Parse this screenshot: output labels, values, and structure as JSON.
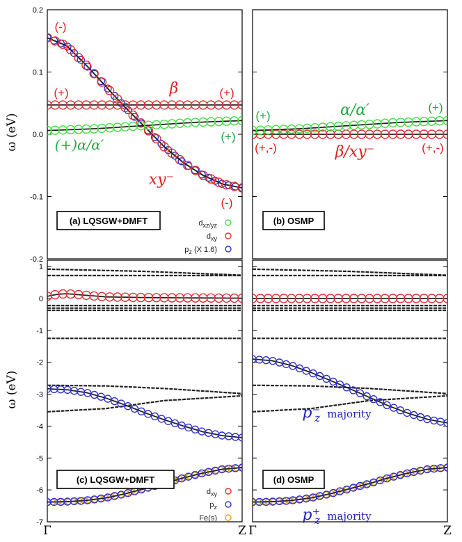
{
  "figure": {
    "xticks": [
      "Γ",
      "Z"
    ],
    "ylabel": "ω (eV)"
  },
  "chart_data": [
    {
      "type": "line",
      "panel_label": "(a) LQSGW+DMFT",
      "ylim": [
        -0.2,
        0.2
      ],
      "yticks": [
        "0.2",
        "0.1",
        "0.0",
        "-0.1",
        "-0.2"
      ],
      "ytick_values": [
        0.2,
        0.1,
        0.0,
        -0.1,
        -0.2
      ],
      "legend": [
        {
          "label": "d",
          "sub": "xz/yz",
          "suffix": "",
          "color": "#44dd44"
        },
        {
          "label": "d",
          "sub": "xy",
          "suffix": "",
          "color": "#e03030"
        },
        {
          "label": "p",
          "sub": "z",
          "suffix": " (X 1.6)",
          "color": "#3030d0"
        }
      ],
      "series": [
        {
          "marker": "#3030d0",
          "line": "#222222",
          "ysize": 7,
          "x": [
            0,
            0.1,
            0.2,
            0.3,
            0.4,
            0.5,
            0.6,
            0.7,
            0.8,
            0.9,
            1.0
          ],
          "y": [
            0.155,
            0.142,
            0.111,
            0.077,
            0.043,
            0.012,
            -0.02,
            -0.046,
            -0.066,
            -0.08,
            -0.086
          ]
        },
        {
          "marker": "#e03030",
          "line": "#222222",
          "ysize": 9,
          "x": [
            0,
            0.1,
            0.2,
            0.3,
            0.4,
            0.5,
            0.6,
            0.7,
            0.8,
            0.9,
            1.0
          ],
          "y": [
            0.155,
            0.142,
            0.111,
            0.077,
            0.043,
            0.012,
            -0.02,
            -0.046,
            -0.066,
            -0.08,
            -0.086
          ]
        },
        {
          "marker": "#e03030",
          "line": "#222222",
          "ysize": 9,
          "x": [
            0,
            1
          ],
          "y": [
            0.047,
            0.047
          ]
        },
        {
          "marker": "#44dd44",
          "line": "#222222",
          "ysize": 9,
          "x": [
            0,
            0.25,
            0.5,
            0.75,
            1.0
          ],
          "y": [
            0.006,
            0.009,
            0.014,
            0.019,
            0.022
          ]
        }
      ],
      "annotations": [
        {
          "text": "(-)",
          "color": "#e02020",
          "italic": false
        },
        {
          "text": "(+)",
          "color": "#e02020",
          "italic": false
        },
        {
          "text": "β",
          "color": "#e02020",
          "italic": true
        },
        {
          "text": "(+)",
          "color": "#e02020",
          "italic": false
        },
        {
          "text": "(+)",
          "color": "#22aa44",
          "italic": false
        },
        {
          "text": "(+)α/α′",
          "color": "#22aa44",
          "italic": true
        },
        {
          "text": "xy⁻",
          "color": "#e02020",
          "italic": true
        },
        {
          "text": "(-)",
          "color": "#e02020",
          "italic": false
        }
      ]
    },
    {
      "type": "line",
      "panel_label": "(b) OSMP",
      "ylim": [
        -0.2,
        0.2
      ],
      "series": [
        {
          "marker": "#e03030",
          "line": "#222222",
          "ysize": 9,
          "x": [
            0,
            1
          ],
          "y": [
            0.0,
            0.0
          ]
        },
        {
          "marker": "#44dd44",
          "line": "#222222",
          "ysize": 9,
          "x": [
            0,
            0.25,
            0.5,
            0.75,
            1.0
          ],
          "y": [
            0.006,
            0.009,
            0.014,
            0.019,
            0.022
          ]
        }
      ],
      "annotations": [
        {
          "text": "(+)",
          "color": "#22aa44",
          "italic": false
        },
        {
          "text": "α/α′",
          "color": "#22aa44",
          "italic": true
        },
        {
          "text": "(+)",
          "color": "#22aa44",
          "italic": false
        },
        {
          "text": "(+,-)",
          "color": "#e02020",
          "italic": false
        },
        {
          "text": "β/xy⁻",
          "color": "#e02020",
          "italic": true
        },
        {
          "text": "(+,-)",
          "color": "#e02020",
          "italic": false
        }
      ]
    },
    {
      "type": "line",
      "panel_label": "(c) LQSGW+DMFT",
      "ylim": [
        -7,
        1.2
      ],
      "yticks": [
        "1",
        "0",
        "-1",
        "-2",
        "-3",
        "-4",
        "-5",
        "-6",
        "-7"
      ],
      "ytick_values": [
        1,
        0,
        -1,
        -2,
        -3,
        -4,
        -5,
        -6,
        -7
      ],
      "legend": [
        {
          "label": "d",
          "sub": "xy",
          "suffix": "",
          "color": "#e03030"
        },
        {
          "label": "p",
          "sub": "z",
          "suffix": "",
          "color": "#3030d0"
        },
        {
          "label": "Fe(s)",
          "sub": "",
          "suffix": "",
          "color": "#e0a020"
        }
      ],
      "series": [
        {
          "marker": "",
          "line": "#222222",
          "ysize": 0,
          "x": [
            0,
            0.5,
            1.0
          ],
          "y": [
            0.92,
            0.85,
            0.73
          ]
        },
        {
          "marker": "",
          "line": "#222222",
          "ysize": 0,
          "x": [
            0,
            1
          ],
          "y": [
            0.72,
            0.72
          ]
        },
        {
          "marker": "",
          "line": "#222222",
          "ysize": 0,
          "x": [
            0,
            1
          ],
          "y": [
            -0.22,
            -0.22
          ]
        },
        {
          "marker": "",
          "line": "#222222",
          "ysize": 0,
          "x": [
            0,
            1
          ],
          "y": [
            -0.3,
            -0.3
          ]
        },
        {
          "marker": "",
          "line": "#222222",
          "ysize": 0,
          "x": [
            0,
            1
          ],
          "y": [
            -0.37,
            -0.37
          ]
        },
        {
          "marker": "",
          "line": "#222222",
          "ysize": 0,
          "x": [
            0,
            1
          ],
          "y": [
            -1.25,
            -1.25
          ]
        },
        {
          "marker": "",
          "line": "#222222",
          "ysize": 0,
          "x": [
            0,
            0.3,
            0.6,
            1.0
          ],
          "y": [
            -2.72,
            -2.74,
            -2.82,
            -2.98
          ]
        },
        {
          "marker": "",
          "line": "#222222",
          "ysize": 0,
          "x": [
            0,
            0.3,
            0.6,
            1.0
          ],
          "y": [
            -3.55,
            -3.45,
            -3.2,
            -3.05
          ]
        },
        {
          "marker": "#e03030",
          "line": "#222222",
          "ysize": 9,
          "x": [
            0,
            0.05,
            0.1,
            0.2,
            0.3,
            0.5,
            0.7,
            1.0
          ],
          "y": [
            0.07,
            0.13,
            0.15,
            0.1,
            0.05,
            0.03,
            0.02,
            0.01
          ]
        },
        {
          "marker": "#3030d0",
          "line": "#222222",
          "ysize": 7,
          "x": [
            0,
            0.1,
            0.2,
            0.3,
            0.4,
            0.5,
            0.6,
            0.7,
            0.8,
            0.9,
            1.0
          ],
          "y": [
            -2.83,
            -2.86,
            -2.95,
            -3.12,
            -3.34,
            -3.58,
            -3.8,
            -4.0,
            -4.18,
            -4.3,
            -4.36
          ]
        },
        {
          "marker": "#e0a020",
          "line": "#222222",
          "ysize": 5,
          "x": [
            0,
            0.1,
            0.2,
            0.3,
            0.4,
            0.5,
            0.6,
            0.7,
            0.8,
            0.9,
            1.0
          ],
          "y": [
            -6.38,
            -6.37,
            -6.33,
            -6.25,
            -6.12,
            -5.96,
            -5.8,
            -5.62,
            -5.47,
            -5.35,
            -5.3
          ]
        },
        {
          "marker": "#3030d0",
          "line": "#222222",
          "ysize": 7,
          "x": [
            0,
            0.1,
            0.2,
            0.3,
            0.4,
            0.5,
            0.6,
            0.7,
            0.8,
            0.9,
            1.0
          ],
          "y": [
            -6.38,
            -6.37,
            -6.33,
            -6.25,
            -6.12,
            -5.96,
            -5.8,
            -5.62,
            -5.47,
            -5.35,
            -5.3
          ]
        }
      ],
      "annotations": []
    },
    {
      "type": "line",
      "panel_label": "(d) OSMP",
      "ylim": [
        -7,
        1.2
      ],
      "series": [
        {
          "marker": "",
          "line": "#222222",
          "ysize": 0,
          "x": [
            0,
            0.5,
            1.0
          ],
          "y": [
            0.92,
            0.85,
            0.73
          ]
        },
        {
          "marker": "",
          "line": "#222222",
          "ysize": 0,
          "x": [
            0,
            1
          ],
          "y": [
            0.72,
            0.72
          ]
        },
        {
          "marker": "",
          "line": "#222222",
          "ysize": 0,
          "x": [
            0,
            1
          ],
          "y": [
            -0.22,
            -0.22
          ]
        },
        {
          "marker": "",
          "line": "#222222",
          "ysize": 0,
          "x": [
            0,
            1
          ],
          "y": [
            -0.3,
            -0.3
          ]
        },
        {
          "marker": "",
          "line": "#222222",
          "ysize": 0,
          "x": [
            0,
            1
          ],
          "y": [
            -0.37,
            -0.37
          ]
        },
        {
          "marker": "",
          "line": "#222222",
          "ysize": 0,
          "x": [
            0,
            1
          ],
          "y": [
            -1.25,
            -1.25
          ]
        },
        {
          "marker": "",
          "line": "#222222",
          "ysize": 0,
          "x": [
            0,
            0.3,
            0.6,
            1.0
          ],
          "y": [
            -2.72,
            -2.74,
            -2.82,
            -2.98
          ]
        },
        {
          "marker": "",
          "line": "#222222",
          "ysize": 0,
          "x": [
            0,
            0.3,
            0.6,
            1.0
          ],
          "y": [
            -3.55,
            -3.45,
            -3.2,
            -3.05
          ]
        },
        {
          "marker": "#e03030",
          "line": "#222222",
          "ysize": 9,
          "x": [
            0,
            1
          ],
          "y": [
            0.0,
            0.0
          ]
        },
        {
          "marker": "#3030d0",
          "line": "#222222",
          "ysize": 7,
          "x": [
            0,
            0.1,
            0.2,
            0.3,
            0.4,
            0.5,
            0.6,
            0.7,
            0.8,
            0.9,
            1.0
          ],
          "y": [
            -1.9,
            -1.95,
            -2.1,
            -2.32,
            -2.57,
            -2.83,
            -3.1,
            -3.37,
            -3.6,
            -3.79,
            -3.9
          ]
        },
        {
          "marker": "#e0a020",
          "line": "#222222",
          "ysize": 5,
          "x": [
            0,
            0.1,
            0.2,
            0.3,
            0.4,
            0.5,
            0.6,
            0.7,
            0.8,
            0.9,
            1.0
          ],
          "y": [
            -6.38,
            -6.37,
            -6.33,
            -6.25,
            -6.12,
            -5.96,
            -5.8,
            -5.62,
            -5.47,
            -5.35,
            -5.3
          ]
        },
        {
          "marker": "#3030d0",
          "line": "#222222",
          "ysize": 7,
          "x": [
            0,
            0.1,
            0.2,
            0.3,
            0.4,
            0.5,
            0.6,
            0.7,
            0.8,
            0.9,
            1.0
          ],
          "y": [
            -6.38,
            -6.37,
            -6.33,
            -6.25,
            -6.12,
            -5.96,
            -5.8,
            -5.62,
            -5.47,
            -5.35,
            -5.3
          ]
        }
      ],
      "annotations": [
        {
          "text": "p⁻",
          "sub": "z",
          "suffix": "majority",
          "color": "#2020c0",
          "italic": true
        },
        {
          "text": "p⁺",
          "sub": "z",
          "suffix": "majority",
          "color": "#2020c0",
          "italic": true
        }
      ]
    }
  ]
}
